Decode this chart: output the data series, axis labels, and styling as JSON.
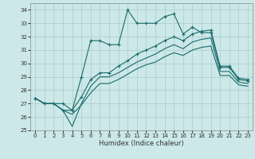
{
  "xlabel": "Humidex (Indice chaleur)",
  "bg_color": "#cce8e8",
  "grid_color": "#aacccc",
  "line_color": "#1a6b6b",
  "xlim": [
    -0.5,
    23.5
  ],
  "ylim": [
    25,
    34.5
  ],
  "yticks": [
    25,
    26,
    27,
    28,
    29,
    30,
    31,
    32,
    33,
    34
  ],
  "xticks": [
    0,
    1,
    2,
    3,
    4,
    5,
    6,
    7,
    8,
    9,
    10,
    11,
    12,
    13,
    14,
    15,
    16,
    17,
    18,
    19,
    20,
    21,
    22,
    23
  ],
  "line1_x": [
    0,
    1,
    2,
    3,
    4,
    5,
    6,
    7,
    8,
    9,
    10,
    11,
    12,
    13,
    14,
    15,
    16,
    17,
    18,
    19,
    20,
    21,
    22,
    23
  ],
  "line1_y": [
    27.4,
    27.0,
    27.0,
    27.0,
    26.5,
    29.0,
    31.7,
    31.7,
    31.4,
    31.4,
    34.0,
    33.0,
    33.0,
    33.0,
    33.5,
    33.7,
    32.2,
    32.7,
    32.3,
    32.3,
    29.7,
    29.7,
    28.8,
    28.7
  ],
  "line2_x": [
    0,
    1,
    2,
    3,
    4,
    5,
    6,
    7,
    8,
    9,
    10,
    11,
    12,
    13,
    14,
    15,
    16,
    17,
    18,
    19,
    20,
    21,
    22,
    23
  ],
  "line2_y": [
    27.4,
    27.0,
    27.0,
    26.5,
    26.5,
    27.5,
    28.8,
    29.3,
    29.3,
    29.8,
    30.2,
    30.7,
    31.0,
    31.3,
    31.7,
    32.0,
    31.7,
    32.2,
    32.4,
    32.5,
    29.8,
    29.8,
    28.9,
    28.8
  ],
  "line3_x": [
    0,
    1,
    2,
    3,
    4,
    5,
    6,
    7,
    8,
    9,
    10,
    11,
    12,
    13,
    14,
    15,
    16,
    17,
    18,
    19,
    20,
    21,
    22,
    23
  ],
  "line3_y": [
    27.4,
    27.0,
    27.0,
    26.5,
    25.3,
    27.0,
    28.3,
    29.0,
    29.0,
    29.3,
    29.7,
    30.1,
    30.4,
    30.7,
    31.1,
    31.4,
    31.1,
    31.6,
    31.8,
    31.9,
    29.4,
    29.4,
    28.6,
    28.5
  ],
  "line4_x": [
    0,
    1,
    2,
    3,
    4,
    5,
    6,
    7,
    8,
    9,
    10,
    11,
    12,
    13,
    14,
    15,
    16,
    17,
    18,
    19,
    20,
    21,
    22,
    23
  ],
  "line4_y": [
    27.4,
    27.0,
    27.0,
    26.5,
    26.2,
    26.9,
    27.8,
    28.5,
    28.5,
    28.8,
    29.2,
    29.6,
    29.9,
    30.1,
    30.5,
    30.8,
    30.6,
    31.0,
    31.2,
    31.3,
    29.1,
    29.1,
    28.4,
    28.3
  ]
}
